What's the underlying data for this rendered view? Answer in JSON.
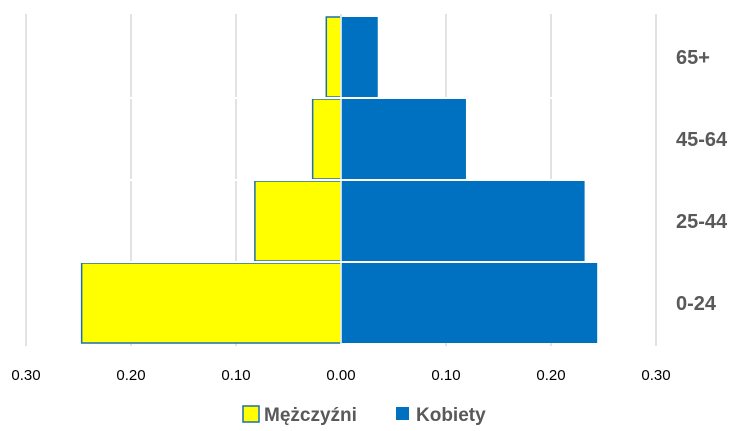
{
  "chart_data": {
    "type": "bar",
    "orientation": "horizontal",
    "layout": "population-pyramid",
    "title": "",
    "xlabel": "",
    "ylabel": "",
    "categories": [
      "0-24",
      "25-44",
      "45-64",
      "65+"
    ],
    "series": [
      {
        "name": "Mężczyźni",
        "side": "left",
        "color": "#FFFF00",
        "edge_color": "#1F6FA8",
        "values": [
          0.247,
          0.082,
          0.027,
          0.014
        ]
      },
      {
        "name": "Kobiety",
        "side": "right",
        "color": "#0070C0",
        "edge_color": "#0070C0",
        "values": [
          0.244,
          0.232,
          0.119,
          0.035
        ]
      }
    ],
    "xlim": [
      -0.3,
      0.3
    ],
    "x_ticks": [
      -0.3,
      -0.2,
      -0.1,
      0,
      0.1,
      0.2,
      0.3
    ],
    "x_tick_labels": [
      "0.30",
      "0.20",
      "0.10",
      "0.00",
      "0.10",
      "0.20",
      "0.30"
    ],
    "grid": "vertical",
    "legend_position": "bottom-center"
  }
}
